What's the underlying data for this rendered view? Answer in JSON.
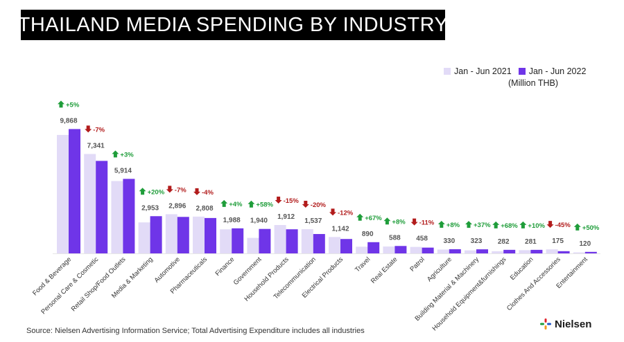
{
  "title": "THAILAND MEDIA SPENDING BY INDUSTRY",
  "legend": {
    "series_2021": "Jan - Jun 2021",
    "series_2022": "Jan - Jun 2022",
    "unit": "(Million THB)"
  },
  "colors": {
    "series_2021": "#e2dbf7",
    "series_2022": "#6f35e8",
    "up": "#1f9d3a",
    "down": "#b21c1c",
    "value_label": "#555555",
    "title_bg": "#000000",
    "brand_icon": [
      "#e1232c",
      "#2255c8",
      "#f39a1e",
      "#1f9d3a"
    ]
  },
  "footer": {
    "source": "Source: Nielsen Advertising Information Service; Total Advertising Expenditure includes all industries"
  },
  "brand": {
    "name": "Nielsen",
    "icon": "nielsen-logo-icon"
  },
  "chart_data": {
    "type": "bar",
    "title": "THAILAND MEDIA SPENDING BY INDUSTRY",
    "unit": "(Million THB)",
    "legend_position": "top-right",
    "grid": false,
    "ylim": [
      0,
      10000
    ],
    "categories": [
      "Food & Beverage",
      "Personal Care & Cosmetic",
      "Retail Shop/Food Outlets",
      "Media & Marketing",
      "Automotive",
      "Pharmaceuticals",
      "Finance",
      "Government",
      "Household Products",
      "Telecommunication",
      "Electrical Products",
      "Travel",
      "Real Estate",
      "Patrol",
      "Agriculture",
      "Building Material & Machinery",
      "Household Equipment&furnishings",
      "Education",
      "Clothes And Accessories",
      "Entertainment"
    ],
    "series": [
      {
        "name": "Jan - Jun 2021",
        "values": [
          9400,
          7890,
          5740,
          2460,
          3110,
          2920,
          1910,
          1230,
          2250,
          1920,
          1300,
          530,
          545,
          515,
          305,
          236,
          168,
          255,
          320,
          80
        ]
      },
      {
        "name": "Jan - Jun 2022",
        "values": [
          9868,
          7341,
          5914,
          2953,
          2896,
          2808,
          1988,
          1940,
          1912,
          1537,
          1142,
          890,
          588,
          458,
          330,
          323,
          282,
          281,
          175,
          120
        ]
      }
    ],
    "value_labels": [
      "9,868",
      "7,341",
      "5,914",
      "2,953",
      "2,896",
      "2,808",
      "1,988",
      "1,940",
      "1,912",
      "1,537",
      "1,142",
      "890",
      "588",
      "458",
      "330",
      "323",
      "282",
      "281",
      "175",
      "120"
    ],
    "changes": [
      {
        "text": "+5%",
        "dir": "up"
      },
      {
        "text": "-7%",
        "dir": "down"
      },
      {
        "text": "+3%",
        "dir": "up"
      },
      {
        "text": "+20%",
        "dir": "up"
      },
      {
        "text": "-7%",
        "dir": "down"
      },
      {
        "text": "-4%",
        "dir": "down"
      },
      {
        "text": "+4%",
        "dir": "up"
      },
      {
        "text": "+58%",
        "dir": "up"
      },
      {
        "text": "-15%",
        "dir": "down"
      },
      {
        "text": "-20%",
        "dir": "down"
      },
      {
        "text": "-12%",
        "dir": "down"
      },
      {
        "text": "+67%",
        "dir": "up"
      },
      {
        "text": "+8%",
        "dir": "up"
      },
      {
        "text": "-11%",
        "dir": "down"
      },
      {
        "text": "+8%",
        "dir": "up"
      },
      {
        "text": "+37%",
        "dir": "up"
      },
      {
        "text": "+68%",
        "dir": "up"
      },
      {
        "text": "+10%",
        "dir": "up"
      },
      {
        "text": "-45%",
        "dir": "down"
      },
      {
        "text": "+50%",
        "dir": "up"
      }
    ]
  }
}
